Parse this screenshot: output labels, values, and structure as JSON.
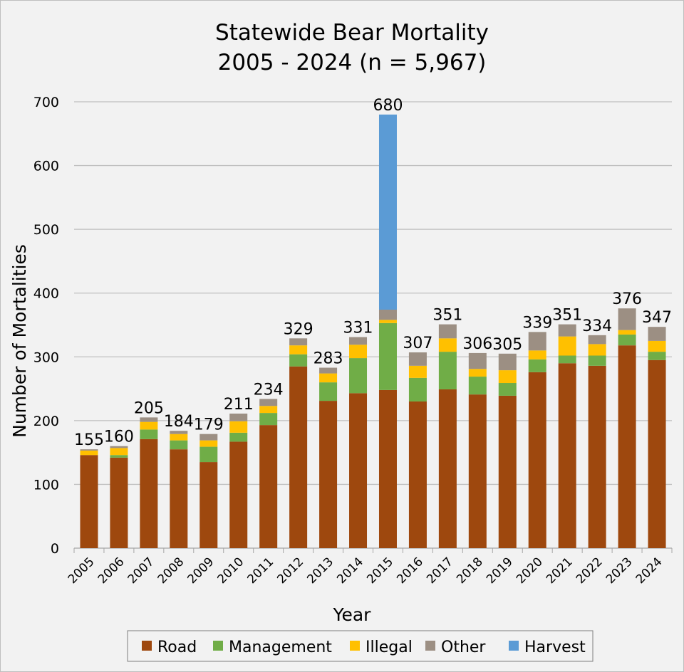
{
  "chart_data": {
    "type": "bar",
    "stacked": true,
    "title": [
      "Statewide Bear Mortality",
      "2005 - 2024 (n = 5,967)"
    ],
    "xlabel": "Year",
    "ylabel": "Number of Mortalities",
    "ylim": [
      0,
      700
    ],
    "yticks": [
      0,
      100,
      200,
      300,
      400,
      500,
      600,
      700
    ],
    "grid": true,
    "legend_position": "bottom",
    "categories": [
      "2005",
      "2006",
      "2007",
      "2008",
      "2009",
      "2010",
      "2011",
      "2012",
      "2013",
      "2014",
      "2015",
      "2016",
      "2017",
      "2018",
      "2019",
      "2020",
      "2021",
      "2022",
      "2023",
      "2024"
    ],
    "totals": [
      155,
      160,
      205,
      184,
      179,
      211,
      234,
      329,
      283,
      331,
      680,
      307,
      351,
      306,
      305,
      339,
      351,
      334,
      376,
      347
    ],
    "series": [
      {
        "name": "Road",
        "color": "#9E480E",
        "values": [
          146,
          142,
          171,
          155,
          135,
          167,
          193,
          285,
          231,
          243,
          248,
          230,
          249,
          241,
          239,
          276,
          290,
          286,
          318,
          295
        ]
      },
      {
        "name": "Management",
        "color": "#70AD47",
        "values": [
          0,
          4,
          15,
          14,
          24,
          14,
          19,
          19,
          29,
          55,
          105,
          37,
          59,
          28,
          20,
          20,
          12,
          16,
          17,
          13
        ]
      },
      {
        "name": "Illegal",
        "color": "#FFC000",
        "values": [
          7,
          11,
          12,
          10,
          10,
          18,
          11,
          14,
          14,
          21,
          5,
          19,
          21,
          12,
          20,
          14,
          30,
          18,
          7,
          17
        ]
      },
      {
        "name": "Other",
        "color": "#9C8F83",
        "values": [
          2,
          3,
          7,
          5,
          10,
          12,
          11,
          11,
          9,
          12,
          16,
          21,
          22,
          25,
          26,
          29,
          19,
          14,
          34,
          22
        ]
      },
      {
        "name": "Harvest",
        "color": "#5B9BD5",
        "values": [
          0,
          0,
          0,
          0,
          0,
          0,
          0,
          0,
          0,
          0,
          306,
          0,
          0,
          0,
          0,
          0,
          0,
          0,
          0,
          0
        ]
      }
    ]
  }
}
